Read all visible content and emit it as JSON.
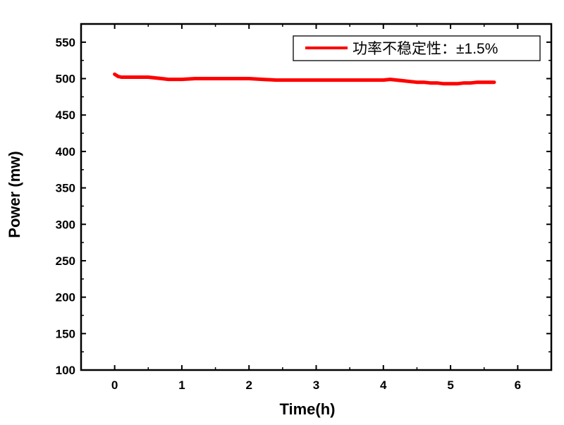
{
  "chart_data": {
    "type": "line",
    "title": "",
    "xlabel": "Time(h)",
    "ylabel": "Power (mw)",
    "xlim": [
      -0.5,
      6.5
    ],
    "ylim": [
      100,
      575
    ],
    "xticks": [
      0,
      1,
      2,
      3,
      4,
      5,
      6
    ],
    "yticks": [
      100,
      150,
      200,
      250,
      300,
      350,
      400,
      450,
      500,
      550
    ],
    "grid": false,
    "legend_position": "top-right",
    "series": [
      {
        "name": "功率不稳定性：±1.5%",
        "color": "#ff0000",
        "x": [
          0.0,
          0.05,
          0.1,
          0.2,
          0.3,
          0.4,
          0.5,
          0.6,
          0.7,
          0.8,
          0.9,
          1.0,
          1.2,
          1.4,
          1.6,
          1.8,
          2.0,
          2.2,
          2.4,
          2.6,
          2.8,
          3.0,
          3.2,
          3.4,
          3.6,
          3.8,
          4.0,
          4.1,
          4.2,
          4.3,
          4.4,
          4.5,
          4.6,
          4.7,
          4.8,
          4.9,
          5.0,
          5.1,
          5.2,
          5.3,
          5.4,
          5.5,
          5.6,
          5.65
        ],
        "values": [
          506,
          503,
          502,
          502,
          502,
          502,
          502,
          501,
          500,
          499,
          499,
          499,
          500,
          500,
          500,
          500,
          500,
          499,
          498,
          498,
          498,
          498,
          498,
          498,
          498,
          498,
          498,
          499,
          498,
          497,
          496,
          495,
          495,
          494,
          494,
          493,
          493,
          493,
          494,
          494,
          495,
          495,
          495,
          495
        ]
      }
    ]
  }
}
